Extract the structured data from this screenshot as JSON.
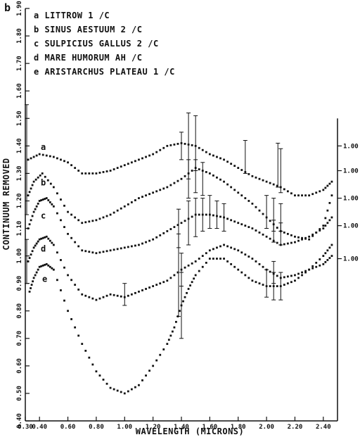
{
  "panel_label": "b",
  "right_axis_label": "1.00",
  "chart_data": {
    "type": "line",
    "title": "",
    "xlabel": "WAVELENGTH (MICRONS)",
    "ylabel": "CONTINUUM REMOVED",
    "xlim": [
      0.3,
      2.5
    ],
    "ylim": [
      0.4,
      1.9
    ],
    "grid": false,
    "legend_position": "top-left",
    "x_ticks": [
      0.3,
      0.4,
      0.6,
      0.8,
      1.0,
      1.2,
      1.4,
      1.6,
      1.8,
      2.0,
      2.2,
      2.4
    ],
    "x_tick_labels": [
      "0.30",
      "0.40",
      "0.60",
      "0.80",
      "1.00",
      "1.20",
      "1.40",
      "1.60",
      "1.80",
      "2.00",
      "2.20",
      "2.40"
    ],
    "y_ticks": [
      0.4,
      0.5,
      0.6,
      0.7,
      0.8,
      0.9,
      1.0,
      1.1,
      1.2,
      1.3,
      1.4,
      1.5,
      1.6,
      1.7,
      1.8,
      1.9
    ],
    "y_tick_labels": [
      "0.40",
      "0.50",
      "0.60",
      "0.70",
      "0.80",
      "0.90",
      "1.00",
      "1.10",
      "1.20",
      "1.30",
      "1.40",
      "1.50",
      "1.60",
      "1.70",
      "1.80",
      "1.90"
    ],
    "legend": [
      "a   LITTROW 1 /C",
      "b   SINUS AESTUUM 2 /C",
      "c   SULPICIUS GALLUS 2 /C",
      "d   MARE HUMORUM AH /C",
      "e   ARISTARCHUS PLATEAU 1 /C"
    ],
    "series": [
      {
        "name": "a",
        "ref_level": 1.4,
        "ref_label": "1.00",
        "x": [
          0.32,
          0.4,
          0.5,
          0.6,
          0.7,
          0.8,
          0.9,
          1.0,
          1.1,
          1.2,
          1.3,
          1.4,
          1.5,
          1.6,
          1.7,
          1.8,
          1.9,
          2.0,
          2.1,
          2.2,
          2.3,
          2.4,
          2.46
        ],
        "y": [
          1.35,
          1.37,
          1.36,
          1.34,
          1.3,
          1.3,
          1.31,
          1.33,
          1.35,
          1.37,
          1.4,
          1.41,
          1.4,
          1.37,
          1.35,
          1.32,
          1.29,
          1.27,
          1.25,
          1.22,
          1.22,
          1.24,
          1.27
        ],
        "errors": [
          {
            "x": 0.31,
            "y": 1.35,
            "err": 0.2
          },
          {
            "x": 1.4,
            "y": 1.4,
            "err": 0.05
          },
          {
            "x": 1.45,
            "y": 1.4,
            "err": 0.12
          },
          {
            "x": 1.5,
            "y": 1.41,
            "err": 0.1
          },
          {
            "x": 1.85,
            "y": 1.36,
            "err": 0.06
          },
          {
            "x": 2.08,
            "y": 1.33,
            "err": 0.08
          },
          {
            "x": 2.1,
            "y": 1.31,
            "err": 0.08
          }
        ]
      },
      {
        "name": "b",
        "ref_level": 1.31,
        "ref_label": "1.00",
        "x": [
          0.32,
          0.36,
          0.42,
          0.5,
          0.6,
          0.7,
          0.8,
          0.9,
          1.0,
          1.1,
          1.2,
          1.3,
          1.4,
          1.5,
          1.6,
          1.7,
          1.8,
          1.9,
          2.0,
          2.1,
          2.2,
          2.3,
          2.4,
          2.46
        ],
        "y": [
          1.22,
          1.27,
          1.3,
          1.25,
          1.16,
          1.12,
          1.13,
          1.15,
          1.18,
          1.21,
          1.23,
          1.25,
          1.28,
          1.32,
          1.3,
          1.27,
          1.23,
          1.19,
          1.14,
          1.09,
          1.07,
          1.06,
          1.11,
          1.22
        ],
        "errors": [
          {
            "x": 1.45,
            "y": 1.28,
            "err": 0.07
          },
          {
            "x": 1.5,
            "y": 1.29,
            "err": 0.06
          },
          {
            "x": 1.55,
            "y": 1.28,
            "err": 0.06
          },
          {
            "x": 2.0,
            "y": 1.16,
            "err": 0.06
          },
          {
            "x": 2.05,
            "y": 1.15,
            "err": 0.06
          },
          {
            "x": 2.1,
            "y": 1.14,
            "err": 0.05
          }
        ]
      },
      {
        "name": "c",
        "ref_level": 1.21,
        "ref_label": "1.00",
        "x": [
          0.32,
          0.36,
          0.4,
          0.45,
          0.5,
          0.6,
          0.7,
          0.8,
          0.9,
          1.0,
          1.1,
          1.2,
          1.3,
          1.4,
          1.5,
          1.6,
          1.7,
          1.8,
          1.9,
          2.0,
          2.1,
          2.2,
          2.3,
          2.4,
          2.46
        ],
        "y": [
          1.1,
          1.16,
          1.2,
          1.21,
          1.18,
          1.08,
          1.02,
          1.01,
          1.02,
          1.03,
          1.04,
          1.06,
          1.09,
          1.12,
          1.15,
          1.15,
          1.14,
          1.12,
          1.1,
          1.07,
          1.04,
          1.05,
          1.07,
          1.1,
          1.14
        ],
        "errors": [
          {
            "x": 1.38,
            "y": 1.1,
            "err": 0.07
          },
          {
            "x": 1.45,
            "y": 1.12,
            "err": 0.08
          },
          {
            "x": 1.5,
            "y": 1.14,
            "err": 0.07
          },
          {
            "x": 1.55,
            "y": 1.15,
            "err": 0.06
          },
          {
            "x": 1.6,
            "y": 1.16,
            "err": 0.06
          },
          {
            "x": 1.65,
            "y": 1.15,
            "err": 0.05
          },
          {
            "x": 1.7,
            "y": 1.14,
            "err": 0.05
          },
          {
            "x": 2.05,
            "y": 1.09,
            "err": 0.04
          },
          {
            "x": 2.1,
            "y": 1.08,
            "err": 0.04
          }
        ]
      },
      {
        "name": "d",
        "ref_level": 1.11,
        "ref_label": "1.00",
        "x": [
          0.32,
          0.36,
          0.4,
          0.45,
          0.5,
          0.6,
          0.7,
          0.8,
          0.9,
          1.0,
          1.1,
          1.2,
          1.3,
          1.4,
          1.5,
          1.6,
          1.7,
          1.8,
          1.9,
          2.0,
          2.1,
          2.2,
          2.3,
          2.4,
          2.46
        ],
        "y": [
          0.98,
          1.03,
          1.06,
          1.07,
          1.04,
          0.93,
          0.86,
          0.84,
          0.86,
          0.85,
          0.87,
          0.89,
          0.91,
          0.95,
          0.98,
          1.02,
          1.04,
          1.02,
          0.99,
          0.95,
          0.92,
          0.93,
          0.95,
          0.97,
          1.0
        ],
        "errors": [
          {
            "x": 0.31,
            "y": 0.98,
            "err": 0.08
          },
          {
            "x": 1.0,
            "y": 0.86,
            "err": 0.04
          },
          {
            "x": 1.38,
            "y": 0.93,
            "err": 0.15
          },
          {
            "x": 1.4,
            "y": 0.95,
            "err": 0.06
          },
          {
            "x": 2.05,
            "y": 0.94,
            "err": 0.04
          }
        ]
      },
      {
        "name": "e",
        "ref_level": 0.99,
        "ref_label": "1.00",
        "x": [
          0.33,
          0.36,
          0.4,
          0.45,
          0.5,
          0.6,
          0.7,
          0.8,
          0.9,
          1.0,
          1.1,
          1.2,
          1.3,
          1.35,
          1.4,
          1.45,
          1.5,
          1.6,
          1.7,
          1.8,
          1.9,
          2.0,
          2.1,
          2.2,
          2.3,
          2.4,
          2.46
        ],
        "y": [
          0.87,
          0.92,
          0.96,
          0.97,
          0.95,
          0.8,
          0.68,
          0.58,
          0.52,
          0.5,
          0.53,
          0.6,
          0.68,
          0.74,
          0.82,
          0.88,
          0.93,
          0.99,
          0.99,
          0.95,
          0.91,
          0.89,
          0.89,
          0.91,
          0.95,
          1.0,
          1.04
        ],
        "errors": [
          {
            "x": 1.4,
            "y": 0.82,
            "err": 0.12
          },
          {
            "x": 2.0,
            "y": 0.9,
            "err": 0.05
          },
          {
            "x": 2.05,
            "y": 0.89,
            "err": 0.05
          },
          {
            "x": 2.1,
            "y": 0.89,
            "err": 0.05
          }
        ]
      }
    ]
  }
}
